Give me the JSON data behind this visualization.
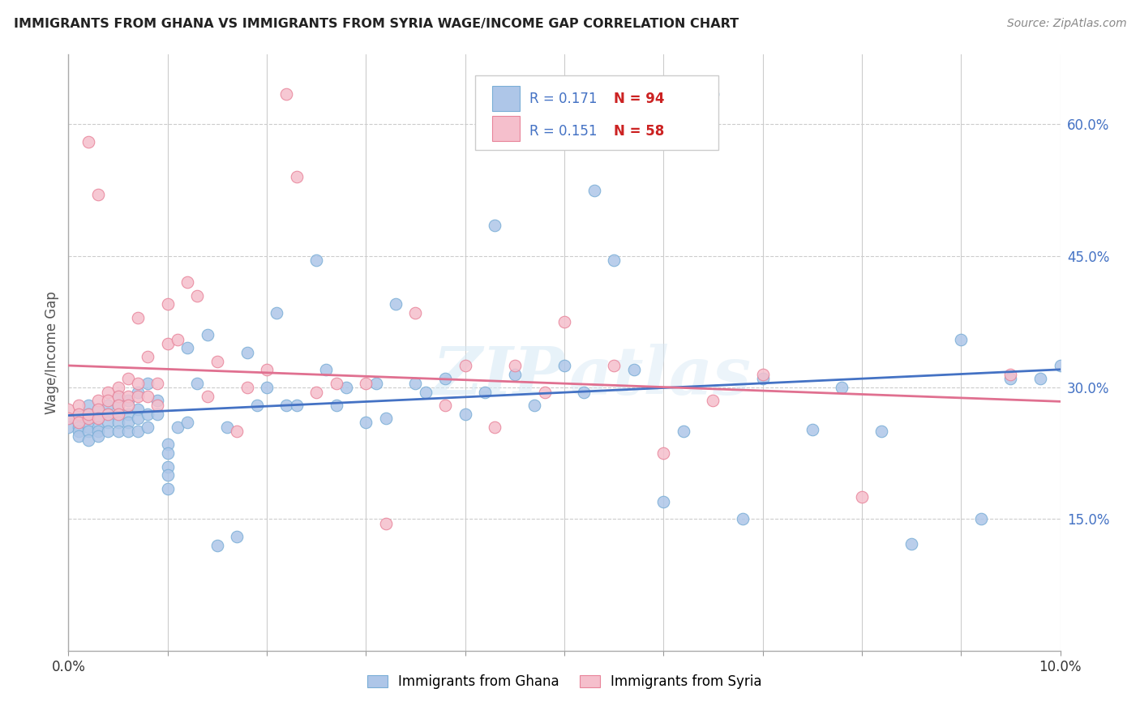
{
  "title": "IMMIGRANTS FROM GHANA VS IMMIGRANTS FROM SYRIA WAGE/INCOME GAP CORRELATION CHART",
  "source_text": "Source: ZipAtlas.com",
  "ylabel": "Wage/Income Gap",
  "xlim": [
    0.0,
    0.1
  ],
  "ylim": [
    0.0,
    0.68
  ],
  "right_yticks": [
    0.15,
    0.3,
    0.45,
    0.6
  ],
  "right_yticklabels": [
    "15.0%",
    "30.0%",
    "45.0%",
    "60.0%"
  ],
  "ghana_color": "#aec6e8",
  "ghana_edge_color": "#7aaed6",
  "syria_color": "#f5bfcc",
  "syria_edge_color": "#e8849a",
  "ghana_line_color": "#4472c4",
  "syria_line_color": "#e07090",
  "ghana_R": 0.171,
  "ghana_N": 94,
  "syria_R": 0.151,
  "syria_N": 58,
  "legend_R_color": "#4472c4",
  "legend_N_color": "#cc2222",
  "watermark_zip": "ZIP",
  "watermark_atlas": "atlas",
  "ghana_x": [
    0.0,
    0.0,
    0.001,
    0.001,
    0.001,
    0.001,
    0.001,
    0.002,
    0.002,
    0.002,
    0.002,
    0.002,
    0.002,
    0.003,
    0.003,
    0.003,
    0.003,
    0.003,
    0.004,
    0.004,
    0.004,
    0.004,
    0.005,
    0.005,
    0.005,
    0.005,
    0.005,
    0.006,
    0.006,
    0.006,
    0.006,
    0.007,
    0.007,
    0.007,
    0.007,
    0.008,
    0.008,
    0.008,
    0.009,
    0.009,
    0.01,
    0.01,
    0.01,
    0.01,
    0.01,
    0.011,
    0.012,
    0.012,
    0.013,
    0.014,
    0.015,
    0.016,
    0.017,
    0.018,
    0.019,
    0.02,
    0.021,
    0.022,
    0.023,
    0.025,
    0.026,
    0.027,
    0.028,
    0.03,
    0.031,
    0.032,
    0.033,
    0.035,
    0.036,
    0.038,
    0.04,
    0.042,
    0.043,
    0.045,
    0.047,
    0.05,
    0.052,
    0.053,
    0.055,
    0.057,
    0.06,
    0.062,
    0.065,
    0.068,
    0.07,
    0.075,
    0.078,
    0.082,
    0.085,
    0.09,
    0.092,
    0.095,
    0.098,
    0.1
  ],
  "ghana_y": [
    0.265,
    0.255,
    0.27,
    0.26,
    0.255,
    0.25,
    0.245,
    0.28,
    0.27,
    0.265,
    0.255,
    0.25,
    0.24,
    0.275,
    0.265,
    0.255,
    0.25,
    0.245,
    0.28,
    0.27,
    0.26,
    0.25,
    0.29,
    0.28,
    0.27,
    0.26,
    0.25,
    0.285,
    0.27,
    0.26,
    0.25,
    0.295,
    0.275,
    0.265,
    0.25,
    0.305,
    0.27,
    0.255,
    0.285,
    0.27,
    0.235,
    0.225,
    0.21,
    0.2,
    0.185,
    0.255,
    0.345,
    0.26,
    0.305,
    0.36,
    0.12,
    0.255,
    0.13,
    0.34,
    0.28,
    0.3,
    0.385,
    0.28,
    0.28,
    0.445,
    0.32,
    0.28,
    0.3,
    0.26,
    0.305,
    0.265,
    0.395,
    0.305,
    0.295,
    0.31,
    0.27,
    0.295,
    0.485,
    0.315,
    0.28,
    0.325,
    0.295,
    0.525,
    0.445,
    0.32,
    0.17,
    0.25,
    0.635,
    0.15,
    0.31,
    0.252,
    0.3,
    0.25,
    0.122,
    0.355,
    0.15,
    0.31,
    0.31,
    0.325
  ],
  "syria_x": [
    0.0,
    0.0,
    0.001,
    0.001,
    0.001,
    0.002,
    0.002,
    0.002,
    0.003,
    0.003,
    0.003,
    0.003,
    0.004,
    0.004,
    0.004,
    0.005,
    0.005,
    0.005,
    0.005,
    0.006,
    0.006,
    0.006,
    0.007,
    0.007,
    0.007,
    0.008,
    0.008,
    0.009,
    0.009,
    0.01,
    0.01,
    0.011,
    0.012,
    0.013,
    0.014,
    0.015,
    0.017,
    0.018,
    0.02,
    0.022,
    0.023,
    0.025,
    0.027,
    0.03,
    0.032,
    0.035,
    0.038,
    0.04,
    0.043,
    0.045,
    0.048,
    0.05,
    0.055,
    0.06,
    0.065,
    0.07,
    0.08,
    0.095
  ],
  "syria_y": [
    0.275,
    0.265,
    0.28,
    0.27,
    0.26,
    0.265,
    0.58,
    0.27,
    0.285,
    0.275,
    0.265,
    0.52,
    0.295,
    0.285,
    0.27,
    0.3,
    0.29,
    0.28,
    0.27,
    0.31,
    0.29,
    0.28,
    0.305,
    0.38,
    0.29,
    0.335,
    0.29,
    0.305,
    0.28,
    0.395,
    0.35,
    0.355,
    0.42,
    0.405,
    0.29,
    0.33,
    0.25,
    0.3,
    0.32,
    0.635,
    0.54,
    0.295,
    0.305,
    0.305,
    0.145,
    0.385,
    0.28,
    0.325,
    0.255,
    0.325,
    0.295,
    0.375,
    0.325,
    0.225,
    0.285,
    0.315,
    0.175,
    0.315
  ]
}
